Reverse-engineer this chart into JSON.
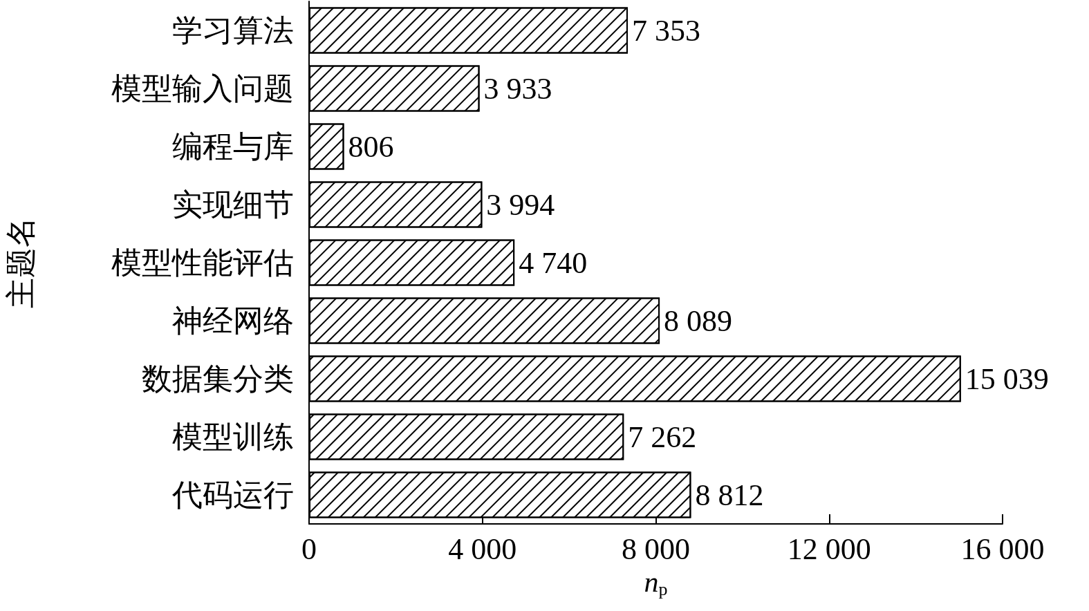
{
  "chart_data": {
    "type": "bar",
    "orientation": "horizontal",
    "xlabel": "n$_{p}$",
    "ylabel": "主题名",
    "categories": [
      "学习算法",
      "模型输入问题",
      "编程与库",
      "实现细节",
      "模型性能评估",
      "神经网络",
      "数据集分类",
      "模型训练",
      "代码运行"
    ],
    "values": [
      7353,
      3933,
      806,
      3994,
      4740,
      8089,
      15039,
      7262,
      8812
    ],
    "value_labels": [
      "7 353",
      "3 933",
      "806",
      "3 994",
      "4 740",
      "8 089",
      "15 039",
      "7 262",
      "8 812"
    ],
    "color": "#000000",
    "xlim": [
      0,
      16000
    ],
    "xticks": [
      0,
      {
        "value": 4000,
        "label": "4 000"
      },
      {
        "value": 8000,
        "label": "8 000"
      },
      {
        "value": 12000,
        "label": "12 000"
      },
      {
        "value": 16000,
        "label": "16 000"
      }
    ],
    "grid": false
  }
}
